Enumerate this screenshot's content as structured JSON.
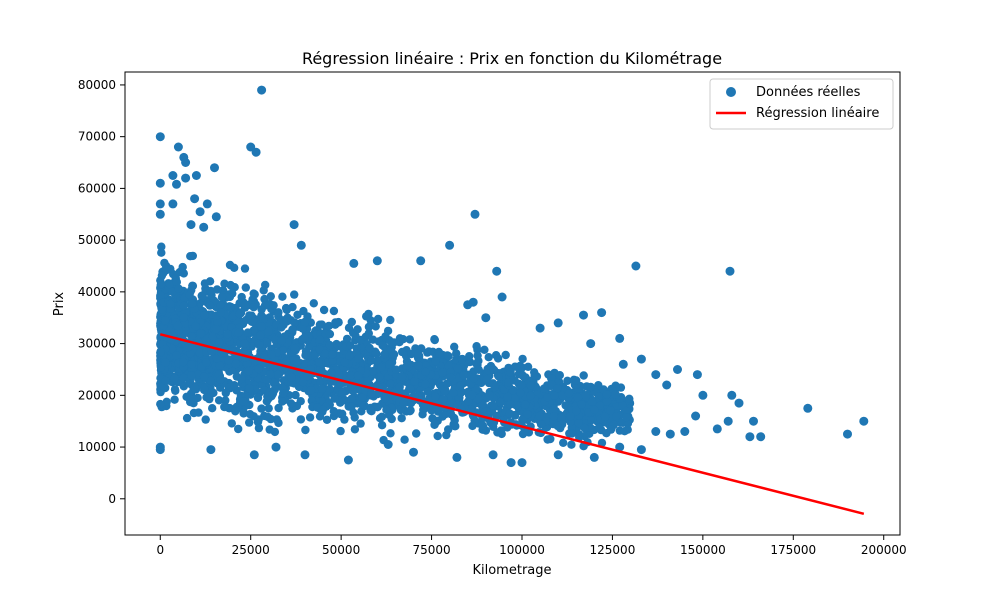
{
  "chart_data": {
    "type": "scatter",
    "title": "Régression linéaire : Prix en fonction du Kilométrage",
    "xlabel": "Kilometrage",
    "ylabel": "Prix",
    "xlim": [
      -9750,
      204500
    ],
    "ylim": [
      -7000,
      82500
    ],
    "x_ticks": [
      0,
      25000,
      50000,
      75000,
      100000,
      125000,
      150000,
      175000,
      200000
    ],
    "x_tick_labels": [
      "0",
      "25000",
      "50000",
      "75000",
      "100000",
      "125000",
      "150000",
      "175000",
      "200000"
    ],
    "y_ticks": [
      0,
      10000,
      20000,
      30000,
      40000,
      50000,
      60000,
      70000,
      80000
    ],
    "y_tick_labels": [
      "0",
      "10000",
      "20000",
      "30000",
      "40000",
      "50000",
      "60000",
      "70000",
      "80000"
    ],
    "grid": false,
    "legend": {
      "placement": "top-right",
      "entries": [
        {
          "label": "Données réelles",
          "kind": "scatter",
          "color": "#1f77b4"
        },
        {
          "label": "Régression linéaire",
          "kind": "line",
          "color": "#ff0000"
        }
      ]
    },
    "series": [
      {
        "name": "Données réelles",
        "kind": "scatter",
        "color": "#1f77b4",
        "points": [
          [
            0,
            70000
          ],
          [
            28000,
            79000
          ],
          [
            5000,
            68000
          ],
          [
            25000,
            68000
          ],
          [
            26500,
            67000
          ],
          [
            6500,
            66000
          ],
          [
            7000,
            65000
          ],
          [
            15000,
            64000
          ],
          [
            3500,
            62500
          ],
          [
            10000,
            62500
          ],
          [
            7000,
            62000
          ],
          [
            0,
            61000
          ],
          [
            4500,
            60800
          ],
          [
            9500,
            58000
          ],
          [
            0,
            57000
          ],
          [
            3500,
            57000
          ],
          [
            13000,
            57000
          ],
          [
            11000,
            55500
          ],
          [
            15500,
            54500
          ],
          [
            0,
            55000
          ],
          [
            87000,
            55000
          ],
          [
            37000,
            53000
          ],
          [
            8500,
            53000
          ],
          [
            12000,
            52500
          ],
          [
            80000,
            49000
          ],
          [
            39000,
            49000
          ],
          [
            72000,
            46000
          ],
          [
            60000,
            46000
          ],
          [
            53500,
            45500
          ],
          [
            131500,
            45000
          ],
          [
            157500,
            44000
          ],
          [
            93000,
            44000
          ],
          [
            86500,
            38000
          ],
          [
            85000,
            37500
          ],
          [
            94500,
            39000
          ],
          [
            117000,
            35500
          ],
          [
            122000,
            36000
          ],
          [
            90000,
            35000
          ],
          [
            105000,
            33000
          ],
          [
            110000,
            34000
          ],
          [
            127000,
            31000
          ],
          [
            119000,
            30000
          ],
          [
            128000,
            26000
          ],
          [
            133000,
            27000
          ],
          [
            143000,
            25000
          ],
          [
            148500,
            24000
          ],
          [
            137000,
            24000
          ],
          [
            140000,
            22000
          ],
          [
            150000,
            20000
          ],
          [
            158000,
            20000
          ],
          [
            160000,
            18500
          ],
          [
            179000,
            17500
          ],
          [
            194500,
            15000
          ],
          [
            164000,
            15000
          ],
          [
            157000,
            15000
          ],
          [
            148000,
            16000
          ],
          [
            154000,
            13500
          ],
          [
            163000,
            12000
          ],
          [
            166000,
            12000
          ],
          [
            190000,
            12500
          ],
          [
            145000,
            13000
          ],
          [
            141000,
            12500
          ],
          [
            137000,
            13000
          ],
          [
            133000,
            9500
          ],
          [
            127000,
            10000
          ],
          [
            120000,
            8000
          ],
          [
            110000,
            8500
          ],
          [
            97000,
            7000
          ],
          [
            100000,
            7000
          ],
          [
            92000,
            8500
          ],
          [
            82000,
            8000
          ],
          [
            70000,
            9000
          ],
          [
            52000,
            7500
          ],
          [
            40000,
            8500
          ],
          [
            26000,
            8500
          ],
          [
            0,
            10000
          ],
          [
            0,
            9500
          ],
          [
            14000,
            9500
          ],
          [
            32000,
            10000
          ],
          [
            63000,
            10500
          ]
        ],
        "dense_cloud": {
          "description": "visible dense band of points",
          "upper_envelope": [
            [
              0,
              50000
            ],
            [
              20000,
              48000
            ],
            [
              40000,
              42000
            ],
            [
              60000,
              37000
            ],
            [
              80000,
              33000
            ],
            [
              100000,
              29000
            ],
            [
              120000,
              25000
            ],
            [
              130000,
              22000
            ]
          ],
          "lower_envelope": [
            [
              0,
              15000
            ],
            [
              20000,
              11000
            ],
            [
              40000,
              10000
            ],
            [
              60000,
              10000
            ],
            [
              80000,
              10000
            ],
            [
              100000,
              9500
            ],
            [
              120000,
              9000
            ],
            [
              130000,
              12000
            ]
          ],
          "x_range": [
            0,
            130000
          ]
        }
      },
      {
        "name": "Régression linéaire",
        "kind": "line",
        "color": "#ff0000",
        "x": [
          0,
          194500
        ],
        "y": [
          31800,
          -2900
        ]
      }
    ]
  }
}
